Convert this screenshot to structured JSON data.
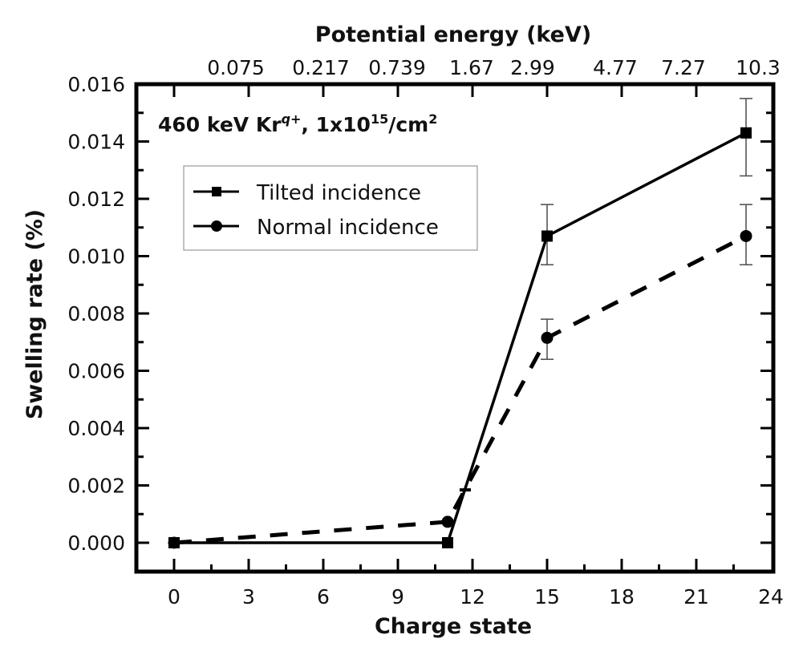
{
  "chart_data": {
    "type": "line",
    "title": "",
    "xlabel": "Charge state",
    "ylabel": "Swelling rate (%)",
    "top_xlabel": "Potential energy (keV)",
    "xlim": [
      -1.5,
      24
    ],
    "ylim": [
      -0.001,
      0.016
    ],
    "x_ticks": [
      0,
      3,
      6,
      9,
      12,
      15,
      18,
      21,
      24
    ],
    "x_tick_labels": [
      "0",
      "3",
      "6",
      "9",
      "12",
      "15",
      "18",
      "21",
      "24"
    ],
    "x_minor_step": 1.5,
    "y_ticks": [
      0.0,
      0.002,
      0.004,
      0.006,
      0.008,
      0.01,
      0.012,
      0.014,
      0.016
    ],
    "y_tick_labels": [
      "0.000",
      "0.002",
      "0.004",
      "0.006",
      "0.008",
      "0.010",
      "0.012",
      "0.014",
      "0.016"
    ],
    "y_minor_step": 0.001,
    "top_ticks": [
      0,
      3,
      6,
      9,
      12,
      15,
      18,
      21
    ],
    "top_tick_labels": [
      "0.075",
      "0.217",
      "0.739",
      "1.67",
      "2.99",
      "4.77",
      "7.27",
      "10.3"
    ],
    "annotation": {
      "text_main": "460 keV Kr",
      "text_sup1": "q+",
      "text_mid": ", 1x10",
      "text_sup2": "15",
      "text_end": "/cm",
      "text_sup3": "2"
    },
    "legend_position": "upper-left",
    "grid": false,
    "series": [
      {
        "name": "Tilted incidence",
        "marker": "square",
        "line_style": "solid",
        "color": "#000000",
        "x": [
          0,
          11,
          15,
          23
        ],
        "y": [
          0.0,
          0.0,
          0.0107,
          0.0143
        ],
        "y_err_low": [
          null,
          null,
          0.0097,
          0.0128
        ],
        "y_err_high": [
          null,
          null,
          0.0118,
          0.0155
        ]
      },
      {
        "name": "Normal incidence",
        "marker": "circle",
        "line_style": "dashed",
        "color": "#000000",
        "x": [
          0,
          11,
          15,
          23
        ],
        "y": [
          0.0,
          0.00073,
          0.00715,
          0.0107
        ],
        "y_err_low": [
          null,
          null,
          0.0064,
          0.0097
        ],
        "y_err_high": [
          null,
          0.0019,
          0.0078,
          0.0118
        ]
      }
    ]
  }
}
